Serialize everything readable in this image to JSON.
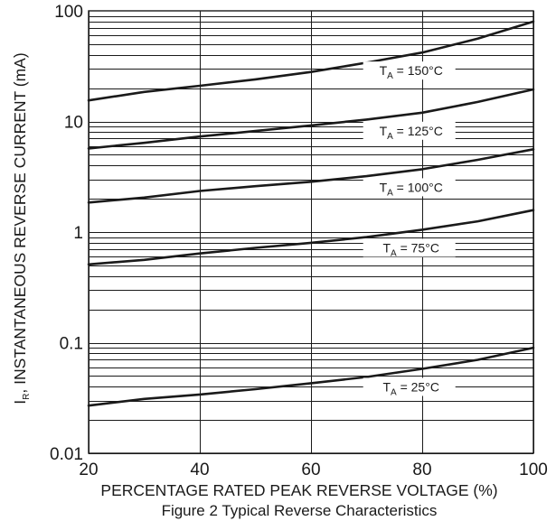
{
  "chart_data": {
    "type": "line",
    "title": "",
    "caption": "Figure 2 Typical Reverse Characteristics",
    "xlabel": "PERCENTAGE RATED PEAK REVERSE VOLTAGE (%)",
    "ylabel_main": "I",
    "ylabel_sub": "R",
    "ylabel_rest": ", INSTANTANEOUS REVERSE CURRENT (mA)",
    "xlim": [
      20,
      100
    ],
    "ylim": [
      0.01,
      100
    ],
    "yscale": "log",
    "grid": true,
    "x_ticks": [
      20,
      40,
      60,
      80,
      100
    ],
    "x_tick_labels": [
      "20",
      "40",
      "60",
      "80",
      "100"
    ],
    "y_ticks": [
      0.01,
      0.1,
      1,
      10,
      100
    ],
    "y_tick_labels": [
      "0.01",
      "0.1",
      "1",
      "10",
      "100"
    ],
    "series": [
      {
        "label_main": "T",
        "label_sub": "A",
        "label_rest": " = 150°C",
        "x": [
          20,
          30,
          40,
          50,
          60,
          70,
          80,
          90,
          100
        ],
        "y": [
          15.5,
          18.5,
          21,
          24,
          28,
          34,
          42,
          56,
          80
        ]
      },
      {
        "label_main": "T",
        "label_sub": "A",
        "label_rest": " = 125°C",
        "x": [
          20,
          30,
          40,
          50,
          60,
          70,
          80,
          90,
          100
        ],
        "y": [
          5.7,
          6.4,
          7.3,
          8.2,
          9.2,
          10.4,
          12,
          15,
          19.5
        ]
      },
      {
        "label_main": "T",
        "label_sub": "A",
        "label_rest": " = 100°C",
        "x": [
          20,
          30,
          40,
          50,
          60,
          70,
          80,
          90,
          100
        ],
        "y": [
          1.85,
          2.05,
          2.35,
          2.6,
          2.85,
          3.2,
          3.7,
          4.5,
          5.6
        ]
      },
      {
        "label_main": "T",
        "label_sub": "A",
        "label_rest": " = 75°C",
        "x": [
          20,
          30,
          40,
          50,
          60,
          70,
          80,
          90,
          100
        ],
        "y": [
          0.51,
          0.56,
          0.64,
          0.72,
          0.8,
          0.9,
          1.05,
          1.25,
          1.58
        ]
      },
      {
        "label_main": "T",
        "label_sub": "A",
        "label_rest": " = 25°C",
        "x": [
          20,
          30,
          40,
          50,
          60,
          70,
          80,
          90,
          100
        ],
        "y": [
          0.027,
          0.031,
          0.034,
          0.038,
          0.043,
          0.049,
          0.058,
          0.07,
          0.09
        ]
      }
    ]
  }
}
